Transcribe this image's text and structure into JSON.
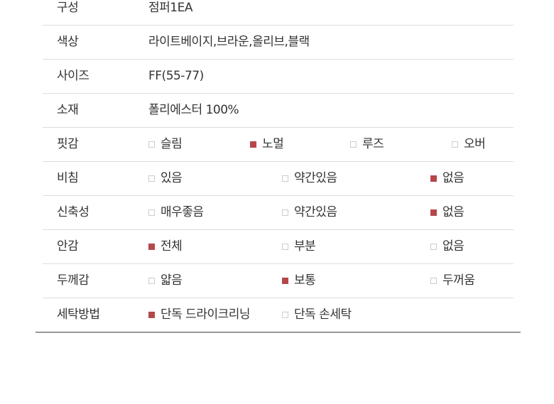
{
  "colors": {
    "checked": "#b5474b",
    "unchecked_border": "#cccccc"
  },
  "rows": [
    {
      "label": "구성",
      "value": "점퍼1EA"
    },
    {
      "label": "색상",
      "value": "라이트베이지,브라운,올리브,블랙"
    },
    {
      "label": "사이즈",
      "value": "FF(55-77)"
    },
    {
      "label": "소재",
      "value": "폴리에스터 100%"
    },
    {
      "label": "핏감",
      "options": [
        {
          "label": "슬림",
          "checked": false
        },
        {
          "label": "노멀",
          "checked": true
        },
        {
          "label": "루즈",
          "checked": false
        },
        {
          "label": "오버",
          "checked": false
        }
      ]
    },
    {
      "label": "비침",
      "options": [
        {
          "label": "있음",
          "checked": false
        },
        {
          "label": "약간있음",
          "checked": false
        },
        {
          "label": "없음",
          "checked": true
        }
      ]
    },
    {
      "label": "신축성",
      "options": [
        {
          "label": "매우좋음",
          "checked": false
        },
        {
          "label": "약간있음",
          "checked": false
        },
        {
          "label": "없음",
          "checked": true
        }
      ]
    },
    {
      "label": "안감",
      "options": [
        {
          "label": "전체",
          "checked": true
        },
        {
          "label": "부분",
          "checked": false
        },
        {
          "label": "없음",
          "checked": false
        }
      ]
    },
    {
      "label": "두께감",
      "options": [
        {
          "label": "얇음",
          "checked": false
        },
        {
          "label": "보통",
          "checked": true
        },
        {
          "label": "두꺼움",
          "checked": false
        }
      ]
    },
    {
      "label": "세탁방법",
      "options": [
        {
          "label": "단독 드라이크리닝",
          "checked": true
        },
        {
          "label": "단독 손세탁",
          "checked": false
        }
      ]
    }
  ]
}
